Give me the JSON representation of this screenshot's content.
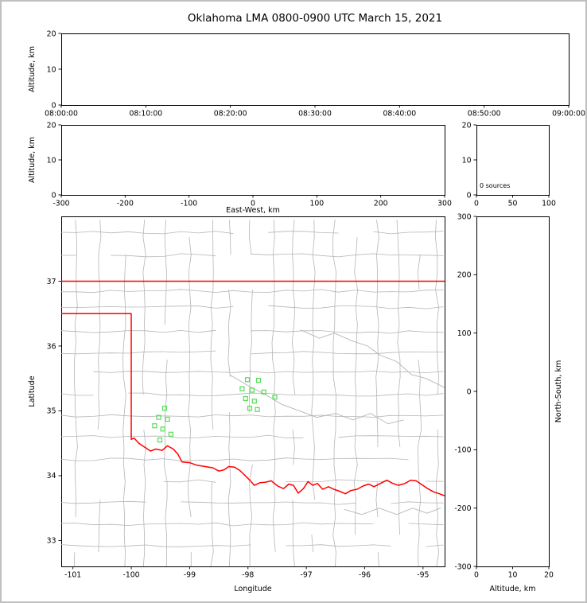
{
  "title": "Oklahoma LMA 0800-0900 UTC March 15, 2021",
  "colors": {
    "background": "#ffffff",
    "frame_border": "#c0c0c0",
    "axis": "#000000",
    "text": "#000000",
    "state_border": "#ff0000",
    "county_line": "#b5b5b5",
    "river_line": "#b5b5b5",
    "station_marker": "#55dd55"
  },
  "chart_data": [
    {
      "id": "time_altitude",
      "type": "scatter",
      "title": "",
      "xlabel": "",
      "ylabel": "Altitude, km",
      "ylim": [
        0,
        20
      ],
      "yticks": [
        0,
        10,
        20
      ],
      "xtick_labels": [
        "08:00:00",
        "08:10:00",
        "08:20:00",
        "08:30:00",
        "08:40:00",
        "08:50:00",
        "09:00:00"
      ],
      "points": []
    },
    {
      "id": "eastwest_altitude",
      "type": "scatter",
      "xlabel": "East-West, km",
      "ylabel": "Altitude, km",
      "xlim": [
        -300,
        300
      ],
      "xticks": [
        -300,
        -200,
        -100,
        0,
        100,
        200,
        300
      ],
      "ylim": [
        0,
        20
      ],
      "yticks": [
        0,
        10,
        20
      ],
      "points": []
    },
    {
      "id": "altitude_histogram",
      "type": "line",
      "xlim": [
        0,
        100
      ],
      "xticks": [
        0,
        50,
        100
      ],
      "ylim": [
        0,
        20
      ],
      "yticks": [
        0,
        10,
        20
      ],
      "annotation": "0 sources",
      "points": []
    },
    {
      "id": "map",
      "type": "scatter",
      "xlabel": "Longitude",
      "ylabel": "Latitude",
      "xlim": [
        -101.2,
        -94.63
      ],
      "ylim": [
        32.6,
        38.0
      ],
      "xticks": [
        -101,
        -100,
        -99,
        -98,
        -97,
        -96,
        -95
      ],
      "yticks": [
        33,
        34,
        35,
        36,
        37
      ],
      "stations": [
        [
          -99.43,
          35.04
        ],
        [
          -99.53,
          34.9
        ],
        [
          -99.38,
          34.87
        ],
        [
          -99.6,
          34.77
        ],
        [
          -99.46,
          34.72
        ],
        [
          -99.32,
          34.64
        ],
        [
          -99.51,
          34.55
        ],
        [
          -98.01,
          35.48
        ],
        [
          -97.82,
          35.47
        ],
        [
          -98.1,
          35.34
        ],
        [
          -97.93,
          35.32
        ],
        [
          -97.73,
          35.29
        ],
        [
          -97.54,
          35.21
        ],
        [
          -98.04,
          35.19
        ],
        [
          -97.89,
          35.15
        ],
        [
          -97.97,
          35.04
        ],
        [
          -97.84,
          35.02
        ]
      ]
    },
    {
      "id": "northsouth_altitude",
      "type": "scatter",
      "xlabel": "Altitude, km",
      "ylabel": "North-South, km",
      "xlim": [
        0,
        20
      ],
      "xticks": [
        0,
        10,
        20
      ],
      "ylim": [
        -300,
        300
      ],
      "yticks": [
        -300,
        -200,
        -100,
        0,
        100,
        200,
        300
      ],
      "points": []
    }
  ],
  "map_layers": {
    "state_border": [
      [
        [
          -101.2,
          37.0
        ],
        [
          -94.63,
          37.0
        ]
      ],
      [
        [
          -101.2,
          36.5
        ],
        [
          -100.0,
          36.5
        ],
        [
          -100.0,
          34.56
        ],
        [
          -99.95,
          34.58
        ],
        [
          -99.87,
          34.5
        ],
        [
          -99.77,
          34.44
        ],
        [
          -99.67,
          34.38
        ],
        [
          -99.58,
          34.41
        ],
        [
          -99.47,
          34.39
        ],
        [
          -99.38,
          34.46
        ],
        [
          -99.28,
          34.41
        ],
        [
          -99.2,
          34.33
        ],
        [
          -99.13,
          34.21
        ],
        [
          -99.0,
          34.2
        ],
        [
          -98.87,
          34.16
        ],
        [
          -98.73,
          34.14
        ],
        [
          -98.6,
          34.12
        ],
        [
          -98.5,
          34.07
        ],
        [
          -98.41,
          34.09
        ],
        [
          -98.33,
          34.14
        ],
        [
          -98.23,
          34.13
        ],
        [
          -98.14,
          34.08
        ],
        [
          -98.08,
          34.03
        ],
        [
          -97.98,
          33.94
        ],
        [
          -97.89,
          33.85
        ],
        [
          -97.8,
          33.89
        ],
        [
          -97.7,
          33.9
        ],
        [
          -97.6,
          33.92
        ],
        [
          -97.49,
          33.84
        ],
        [
          -97.39,
          33.8
        ],
        [
          -97.3,
          33.87
        ],
        [
          -97.22,
          33.85
        ],
        [
          -97.14,
          33.73
        ],
        [
          -97.05,
          33.8
        ],
        [
          -96.97,
          33.91
        ],
        [
          -96.89,
          33.85
        ],
        [
          -96.81,
          33.88
        ],
        [
          -96.72,
          33.79
        ],
        [
          -96.62,
          33.83
        ],
        [
          -96.53,
          33.79
        ],
        [
          -96.43,
          33.76
        ],
        [
          -96.33,
          33.72
        ],
        [
          -96.24,
          33.77
        ],
        [
          -96.13,
          33.79
        ],
        [
          -96.03,
          33.84
        ],
        [
          -95.93,
          33.87
        ],
        [
          -95.84,
          33.83
        ],
        [
          -95.73,
          33.88
        ],
        [
          -95.62,
          33.93
        ],
        [
          -95.52,
          33.88
        ],
        [
          -95.42,
          33.85
        ],
        [
          -95.31,
          33.88
        ],
        [
          -95.21,
          33.93
        ],
        [
          -95.12,
          33.92
        ],
        [
          -95.02,
          33.86
        ],
        [
          -94.92,
          33.8
        ],
        [
          -94.82,
          33.75
        ],
        [
          -94.72,
          33.72
        ],
        [
          -94.63,
          33.69
        ]
      ]
    ],
    "rivers": [
      [
        [
          -97.1,
          36.25
        ],
        [
          -96.78,
          36.12
        ],
        [
          -96.52,
          36.2
        ],
        [
          -96.22,
          36.08
        ],
        [
          -95.95,
          36.0
        ],
        [
          -95.74,
          35.86
        ],
        [
          -95.45,
          35.76
        ],
        [
          -95.2,
          35.56
        ],
        [
          -94.95,
          35.5
        ],
        [
          -94.63,
          35.36
        ]
      ],
      [
        [
          -98.32,
          35.56
        ],
        [
          -98.02,
          35.4
        ],
        [
          -97.72,
          35.26
        ],
        [
          -97.42,
          35.1
        ],
        [
          -97.12,
          35.0
        ],
        [
          -96.82,
          34.9
        ],
        [
          -96.5,
          34.96
        ],
        [
          -96.2,
          34.86
        ],
        [
          -95.9,
          34.96
        ],
        [
          -95.6,
          34.8
        ],
        [
          -95.33,
          34.86
        ]
      ],
      [
        [
          -96.35,
          33.48
        ],
        [
          -96.05,
          33.4
        ],
        [
          -95.75,
          33.5
        ],
        [
          -95.45,
          33.4
        ],
        [
          -95.18,
          33.5
        ],
        [
          -94.93,
          33.42
        ],
        [
          -94.7,
          33.5
        ]
      ]
    ],
    "county_lons": [
      -100.95,
      -100.55,
      -100.12,
      -99.78,
      -99.41,
      -99.0,
      -98.62,
      -98.31,
      -97.95,
      -97.56,
      -97.22,
      -96.88,
      -96.52,
      -96.15,
      -95.78,
      -95.42,
      -95.06,
      -94.76
    ],
    "county_lats": [
      37.75,
      37.4,
      36.85,
      36.6,
      36.22,
      35.9,
      35.6,
      35.25,
      34.92,
      34.6,
      34.25,
      33.92,
      33.58,
      33.25,
      32.92
    ],
    "county_seed": 20210315
  }
}
